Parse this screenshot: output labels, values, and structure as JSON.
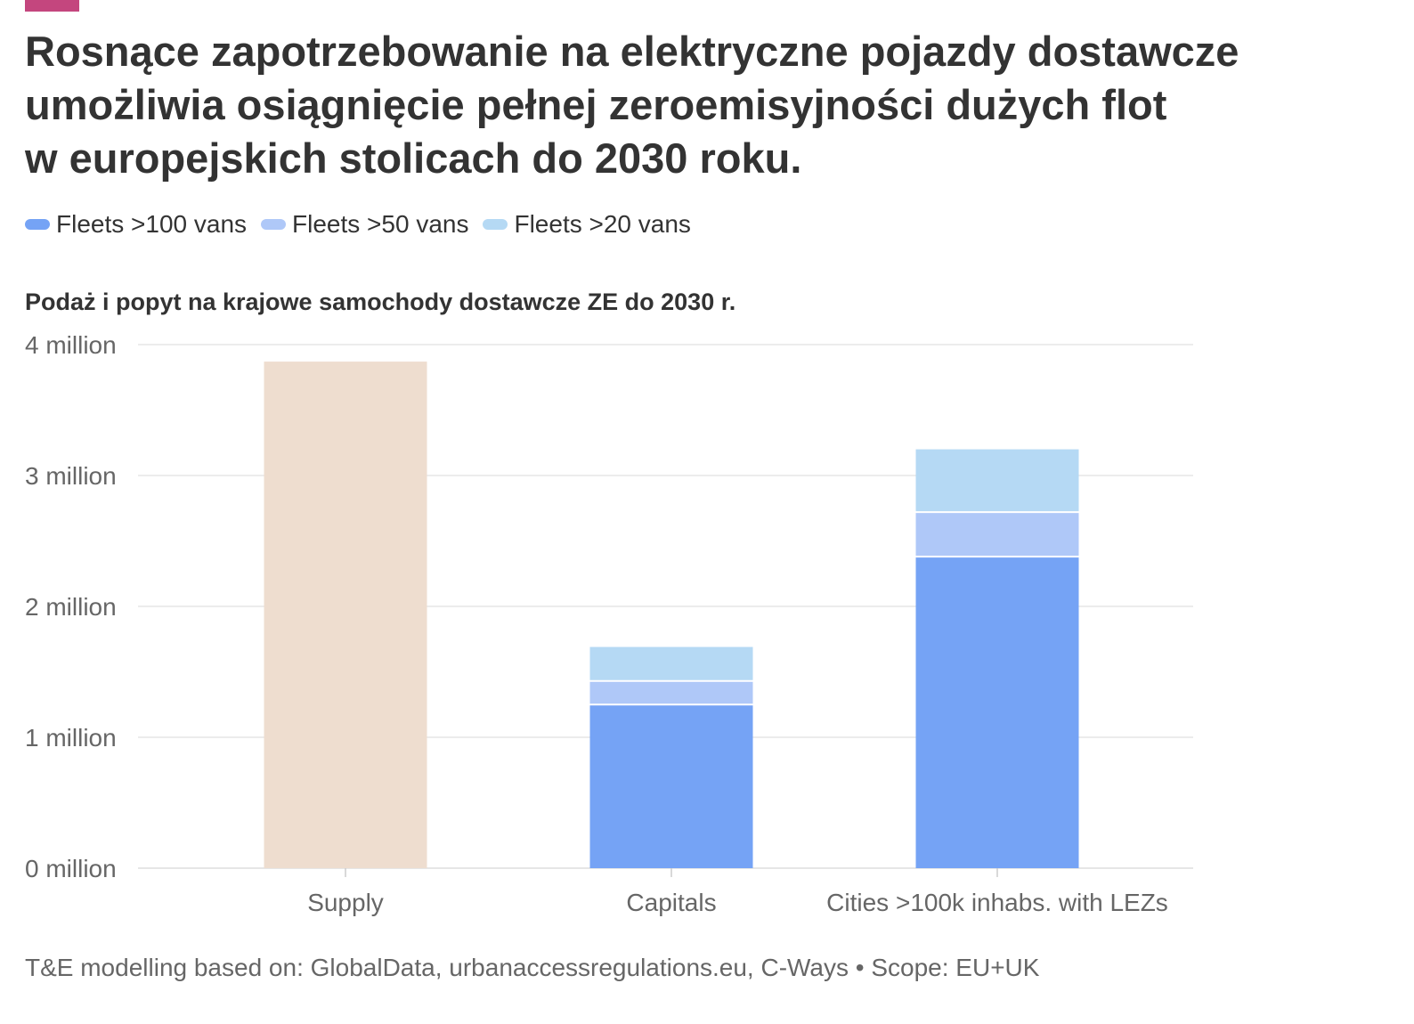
{
  "title_lines": [
    "Rosnące zapotrzebowanie na elektryczne pojazdy dostawcze",
    "umożliwia osiągnięcie pełnej zeroemisyjności dużych flot",
    "w europejskich stolicach do 2030 roku."
  ],
  "legend": [
    {
      "label": "Fleets >100 vans",
      "color": "#75a3f5"
    },
    {
      "label": "Fleets >50 vans",
      "color": "#afc8f8"
    },
    {
      "label": "Fleets >20 vans",
      "color": "#b5d9f4"
    }
  ],
  "subtitle": "Podaż i popyt na krajowe samochody dostawcze ZE do 2030 r.",
  "footer": "T&E modelling based on: GlobalData, urbanaccessregulations.eu, C-Ways • Scope: EU+UK",
  "accent_color": "#c4467e",
  "chart_data": {
    "type": "bar",
    "stacked": true,
    "categories": [
      "Supply",
      "Capitals",
      "Cities >100k inhabs. with LEZs"
    ],
    "supply": {
      "category": "Supply",
      "value": 3.87,
      "color": "#eeddcf"
    },
    "series": [
      {
        "name": "Fleets >100 vans",
        "color": "#75a3f5",
        "values": [
          null,
          1.25,
          2.38
        ]
      },
      {
        "name": "Fleets >50 vans",
        "color": "#afc8f8",
        "values": [
          null,
          0.18,
          0.34
        ]
      },
      {
        "name": "Fleets >20 vans",
        "color": "#b5d9f4",
        "values": [
          null,
          0.26,
          0.48
        ]
      }
    ],
    "ylim": [
      0,
      4
    ],
    "yticks": [
      {
        "value": 0,
        "label": "0 million"
      },
      {
        "value": 1,
        "label": "1 million"
      },
      {
        "value": 2,
        "label": "2 million"
      },
      {
        "value": 3,
        "label": "3 million"
      },
      {
        "value": 4,
        "label": "4 million"
      }
    ],
    "grid": true,
    "legend_position": "top-left"
  }
}
